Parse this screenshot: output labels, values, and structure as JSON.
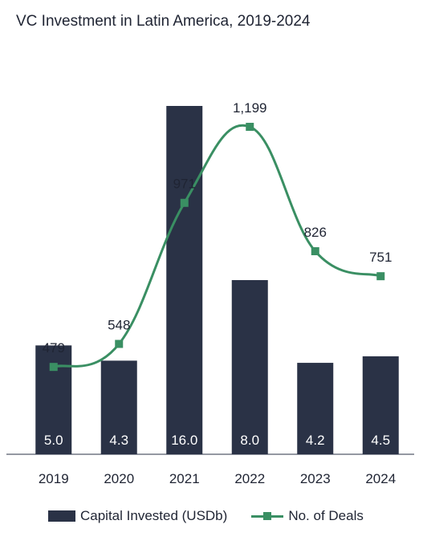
{
  "chart_data": {
    "type": "bar+line",
    "title": "VC Investment in Latin America, 2019-2024",
    "categories": [
      "2019",
      "2020",
      "2021",
      "2022",
      "2023",
      "2024"
    ],
    "series": [
      {
        "name": "Capital Invested (USDb)",
        "type": "bar",
        "values": [
          5.0,
          4.3,
          16.0,
          8.0,
          4.2,
          4.5
        ],
        "labels": [
          "5.0",
          "4.3",
          "16.0",
          "8.0",
          "4.2",
          "4.5"
        ],
        "color": "#2a3246"
      },
      {
        "name": "No. of Deals",
        "type": "line",
        "values": [
          479,
          548,
          971,
          1199,
          826,
          751
        ],
        "labels": [
          "479",
          "548",
          "971",
          "1,199",
          "826",
          "751"
        ],
        "color": "#3a8f63"
      }
    ],
    "legend_position": "bottom",
    "grid": false
  }
}
